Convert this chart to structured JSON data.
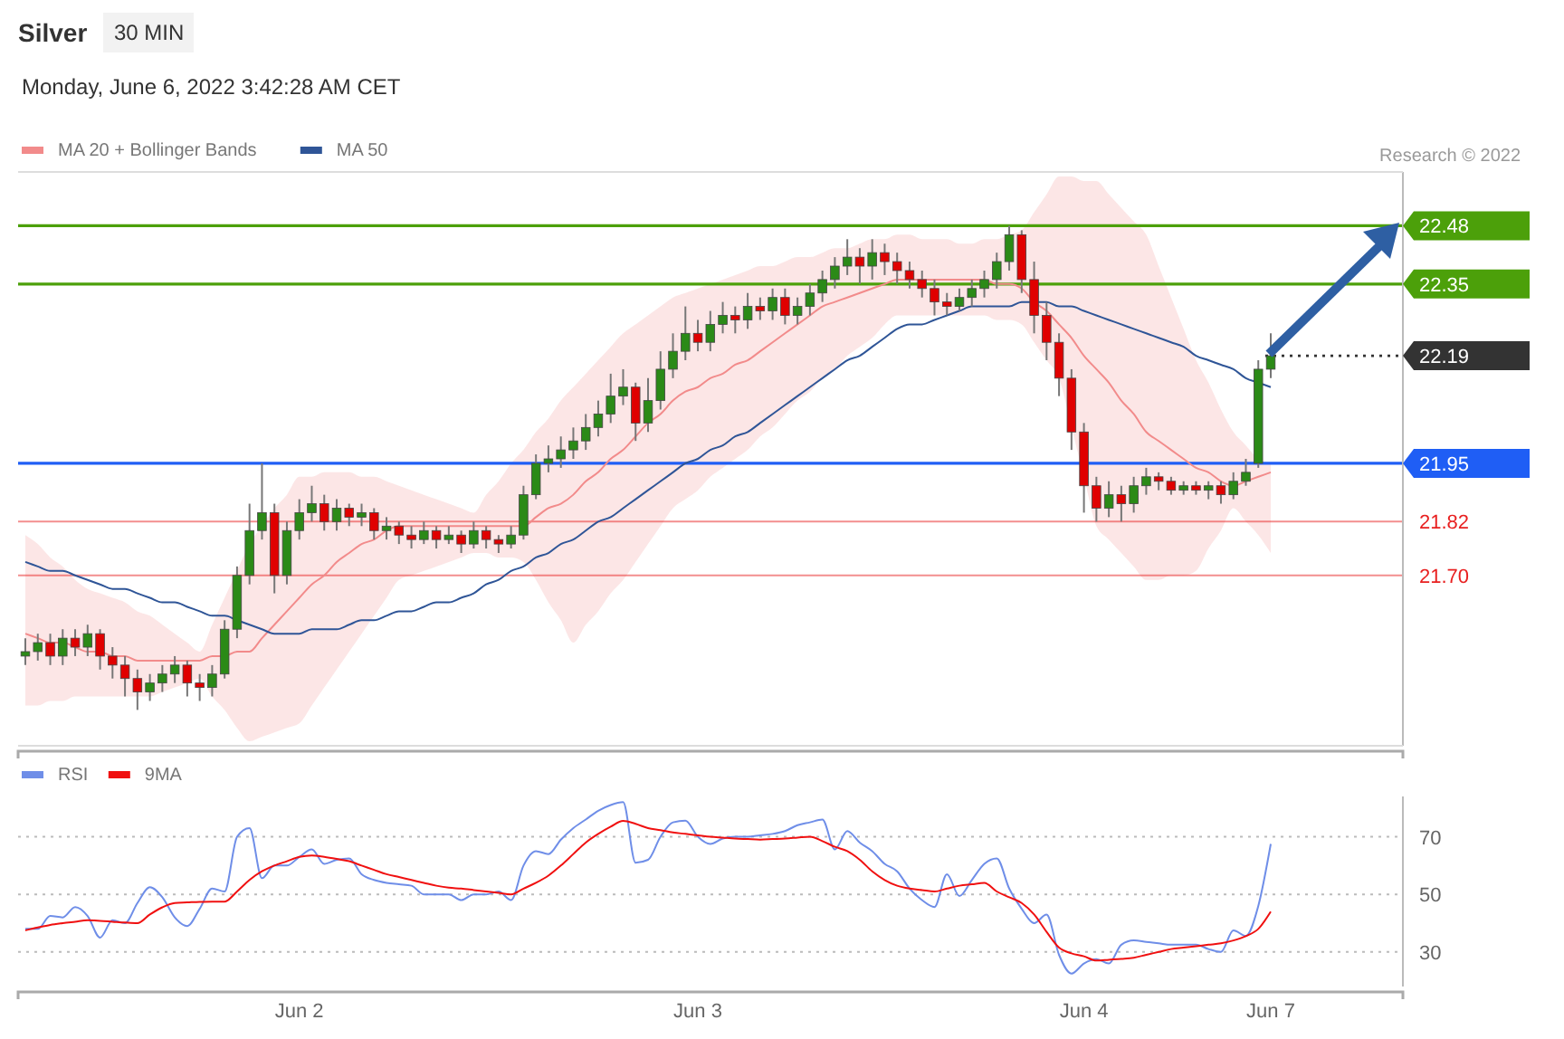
{
  "chart_data": [
    {
      "type": "candlestick",
      "title": "Silver",
      "subtitle": "30 MIN",
      "annotations": [
        "Monday, June 6, 2022 3:42:28 AM CET",
        "Research © 2022"
      ],
      "categories": [
        null,
        null,
        null,
        null,
        null,
        null,
        null,
        null,
        null,
        null,
        null,
        null,
        null,
        null,
        null,
        null,
        null,
        null,
        null,
        null,
        null,
        null,
        null,
        null,
        null,
        null,
        null,
        null,
        null,
        null,
        null,
        null,
        null,
        null,
        null,
        null,
        null,
        null,
        null,
        null,
        null,
        null,
        null,
        null,
        null,
        null,
        null,
        null,
        null,
        null,
        null,
        null,
        null,
        null,
        null,
        null,
        null,
        null,
        null,
        null,
        null,
        null,
        null,
        null,
        null,
        null,
        null,
        null,
        null,
        null,
        null,
        null,
        null,
        null,
        null,
        null,
        null,
        null,
        null,
        null,
        null,
        null,
        null,
        null,
        null,
        null,
        null,
        null,
        null,
        null,
        null,
        null,
        null,
        null,
        null,
        null,
        null,
        null,
        null,
        null,
        null
      ],
      "ohlc": [
        [
          21.52,
          21.56,
          21.5,
          21.53
        ],
        [
          21.53,
          21.57,
          21.51,
          21.55
        ],
        [
          21.55,
          21.57,
          21.5,
          21.52
        ],
        [
          21.52,
          21.58,
          21.5,
          21.56
        ],
        [
          21.56,
          21.58,
          21.52,
          21.54
        ],
        [
          21.54,
          21.59,
          21.52,
          21.57
        ],
        [
          21.57,
          21.58,
          21.49,
          21.52
        ],
        [
          21.52,
          21.54,
          21.47,
          21.5
        ],
        [
          21.5,
          21.52,
          21.43,
          21.47
        ],
        [
          21.47,
          21.49,
          21.4,
          21.44
        ],
        [
          21.44,
          21.48,
          21.42,
          21.46
        ],
        [
          21.46,
          21.5,
          21.44,
          21.48
        ],
        [
          21.48,
          21.52,
          21.46,
          21.5
        ],
        [
          21.5,
          21.51,
          21.43,
          21.46
        ],
        [
          21.46,
          21.48,
          21.42,
          21.45
        ],
        [
          21.45,
          21.5,
          21.43,
          21.48
        ],
        [
          21.48,
          21.6,
          21.47,
          21.58
        ],
        [
          21.58,
          21.72,
          21.56,
          21.7
        ],
        [
          21.7,
          21.86,
          21.68,
          21.8
        ],
        [
          21.8,
          21.95,
          21.78,
          21.84
        ],
        [
          21.84,
          21.86,
          21.66,
          21.7
        ],
        [
          21.7,
          21.82,
          21.68,
          21.8
        ],
        [
          21.8,
          21.87,
          21.78,
          21.84
        ],
        [
          21.84,
          21.9,
          21.82,
          21.86
        ],
        [
          21.86,
          21.88,
          21.8,
          21.82
        ],
        [
          21.82,
          21.87,
          21.8,
          21.85
        ],
        [
          21.85,
          21.86,
          21.81,
          21.83
        ],
        [
          21.83,
          21.86,
          21.81,
          21.84
        ],
        [
          21.84,
          21.85,
          21.78,
          21.8
        ],
        [
          21.8,
          21.83,
          21.78,
          21.81
        ],
        [
          21.81,
          21.82,
          21.77,
          21.79
        ],
        [
          21.79,
          21.81,
          21.76,
          21.78
        ],
        [
          21.78,
          21.82,
          21.77,
          21.8
        ],
        [
          21.8,
          21.81,
          21.76,
          21.78
        ],
        [
          21.78,
          21.81,
          21.77,
          21.79
        ],
        [
          21.79,
          21.8,
          21.75,
          21.77
        ],
        [
          21.77,
          21.82,
          21.76,
          21.8
        ],
        [
          21.8,
          21.81,
          21.76,
          21.78
        ],
        [
          21.78,
          21.79,
          21.75,
          21.77
        ],
        [
          21.77,
          21.81,
          21.76,
          21.79
        ],
        [
          21.79,
          21.9,
          21.78,
          21.88
        ],
        [
          21.88,
          21.97,
          21.87,
          21.95
        ],
        [
          21.95,
          21.99,
          21.93,
          21.96
        ],
        [
          21.96,
          22.01,
          21.94,
          21.98
        ],
        [
          21.98,
          22.03,
          21.96,
          22.0
        ],
        [
          22.0,
          22.06,
          21.98,
          22.03
        ],
        [
          22.03,
          22.09,
          22.01,
          22.06
        ],
        [
          22.06,
          22.15,
          22.04,
          22.1
        ],
        [
          22.1,
          22.16,
          22.08,
          22.12
        ],
        [
          22.12,
          22.13,
          22.0,
          22.04
        ],
        [
          22.04,
          22.14,
          22.02,
          22.09
        ],
        [
          22.09,
          22.2,
          22.07,
          22.16
        ],
        [
          22.16,
          22.24,
          22.14,
          22.2
        ],
        [
          22.2,
          22.3,
          22.18,
          22.24
        ],
        [
          22.24,
          22.27,
          22.2,
          22.22
        ],
        [
          22.22,
          22.29,
          22.2,
          22.26
        ],
        [
          22.26,
          22.31,
          22.24,
          22.28
        ],
        [
          22.28,
          22.3,
          22.24,
          22.27
        ],
        [
          22.27,
          22.33,
          22.25,
          22.3
        ],
        [
          22.3,
          22.32,
          22.27,
          22.29
        ],
        [
          22.29,
          22.34,
          22.27,
          22.32
        ],
        [
          22.32,
          22.34,
          22.26,
          22.28
        ],
        [
          22.28,
          22.32,
          22.26,
          22.3
        ],
        [
          22.3,
          22.35,
          22.28,
          22.33
        ],
        [
          22.33,
          22.38,
          22.31,
          22.36
        ],
        [
          22.36,
          22.41,
          22.34,
          22.39
        ],
        [
          22.39,
          22.45,
          22.37,
          22.41
        ],
        [
          22.41,
          22.43,
          22.35,
          22.39
        ],
        [
          22.39,
          22.45,
          22.36,
          22.42
        ],
        [
          22.42,
          22.44,
          22.37,
          22.4
        ],
        [
          22.4,
          22.42,
          22.35,
          22.38
        ],
        [
          22.38,
          22.4,
          22.34,
          22.36
        ],
        [
          22.36,
          22.38,
          22.32,
          22.34
        ],
        [
          22.34,
          22.36,
          22.28,
          22.31
        ],
        [
          22.31,
          22.33,
          22.28,
          22.3
        ],
        [
          22.3,
          22.34,
          22.29,
          22.32
        ],
        [
          22.32,
          22.36,
          22.3,
          22.34
        ],
        [
          22.34,
          22.38,
          22.32,
          22.36
        ],
        [
          22.36,
          22.42,
          22.34,
          22.4
        ],
        [
          22.4,
          22.48,
          22.38,
          22.46
        ],
        [
          22.46,
          22.47,
          22.33,
          22.36
        ],
        [
          22.36,
          22.4,
          22.24,
          22.28
        ],
        [
          22.28,
          22.31,
          22.18,
          22.22
        ],
        [
          22.22,
          22.24,
          22.1,
          22.14
        ],
        [
          22.14,
          22.16,
          21.98,
          22.02
        ],
        [
          22.02,
          22.04,
          21.84,
          21.9
        ],
        [
          21.9,
          21.92,
          21.82,
          21.85
        ],
        [
          21.85,
          21.91,
          21.83,
          21.88
        ],
        [
          21.88,
          21.9,
          21.82,
          21.86
        ],
        [
          21.86,
          21.92,
          21.84,
          21.9
        ],
        [
          21.9,
          21.94,
          21.88,
          21.92
        ],
        [
          21.92,
          21.93,
          21.89,
          21.91
        ],
        [
          21.91,
          21.92,
          21.88,
          21.89
        ],
        [
          21.89,
          21.91,
          21.88,
          21.9
        ],
        [
          21.9,
          21.91,
          21.88,
          21.89
        ],
        [
          21.89,
          21.91,
          21.87,
          21.9
        ],
        [
          21.9,
          21.91,
          21.86,
          21.88
        ],
        [
          21.88,
          21.93,
          21.87,
          21.91
        ],
        [
          21.91,
          21.96,
          21.9,
          21.93
        ],
        [
          21.95,
          22.18,
          21.94,
          22.16
        ],
        [
          22.16,
          22.24,
          22.14,
          22.19
        ]
      ],
      "series": [
        {
          "type": "line",
          "name": "MA 20 + Bollinger Bands",
          "color": "#f28b8b",
          "values": [
            21.57,
            21.56,
            21.55,
            21.55,
            21.54,
            21.53,
            21.53,
            21.52,
            21.52,
            21.51,
            21.51,
            21.51,
            21.51,
            21.51,
            21.51,
            21.52,
            21.52,
            21.53,
            21.53,
            21.56,
            21.59,
            21.62,
            21.65,
            21.68,
            21.7,
            21.73,
            21.75,
            21.77,
            21.78,
            21.8,
            21.81,
            21.81,
            21.81,
            21.81,
            21.81,
            21.81,
            21.81,
            21.81,
            21.81,
            21.81,
            21.81,
            21.83,
            21.85,
            21.86,
            21.88,
            21.91,
            21.93,
            21.96,
            21.98,
            22.01,
            22.04,
            22.06,
            22.09,
            22.11,
            22.12,
            22.14,
            22.15,
            22.17,
            22.18,
            22.2,
            22.22,
            22.24,
            22.26,
            22.28,
            22.3,
            22.31,
            22.32,
            22.33,
            22.34,
            22.35,
            22.36,
            22.36,
            22.36,
            22.36,
            22.36,
            22.36,
            22.36,
            22.36,
            22.35,
            22.35,
            22.34,
            22.31,
            22.29,
            22.26,
            22.23,
            22.19,
            22.16,
            22.13,
            22.09,
            22.06,
            22.02,
            22.0,
            21.98,
            21.96,
            21.94,
            21.93,
            21.91,
            21.9,
            21.91,
            21.92,
            21.93
          ],
          "upper": [
            21.79,
            21.77,
            21.74,
            21.72,
            21.69,
            21.67,
            21.66,
            21.65,
            21.64,
            21.62,
            21.61,
            21.59,
            21.57,
            21.55,
            21.53,
            21.59,
            21.65,
            21.71,
            21.77,
            21.81,
            21.85,
            21.88,
            21.92,
            21.92,
            21.93,
            21.93,
            21.93,
            21.92,
            21.92,
            21.91,
            21.9,
            21.89,
            21.88,
            21.87,
            21.86,
            21.85,
            21.84,
            21.88,
            21.91,
            21.95,
            21.98,
            22.02,
            22.05,
            22.09,
            22.12,
            22.15,
            22.18,
            22.21,
            22.24,
            22.26,
            22.28,
            22.3,
            22.32,
            22.33,
            22.34,
            22.35,
            22.36,
            22.37,
            22.38,
            22.39,
            22.39,
            22.4,
            22.41,
            22.41,
            22.42,
            22.43,
            22.43,
            22.44,
            22.45,
            22.45,
            22.46,
            22.46,
            22.45,
            22.45,
            22.45,
            22.44,
            22.44,
            22.45,
            22.45,
            22.46,
            22.47,
            22.51,
            22.55,
            22.59,
            22.59,
            22.58,
            22.58,
            22.55,
            22.52,
            22.49,
            22.46,
            22.39,
            22.32,
            22.25,
            22.18,
            22.13,
            22.07,
            22.02,
            21.99,
            21.96,
            21.95
          ],
          "lower": [
            21.41,
            21.41,
            21.42,
            21.42,
            21.43,
            21.43,
            21.43,
            21.43,
            21.43,
            21.43,
            21.43,
            21.44,
            21.45,
            21.46,
            21.47,
            21.43,
            21.4,
            21.36,
            21.33,
            21.34,
            21.35,
            21.36,
            21.37,
            21.41,
            21.45,
            21.49,
            21.53,
            21.57,
            21.61,
            21.65,
            21.69,
            21.7,
            21.71,
            21.72,
            21.73,
            21.74,
            21.75,
            21.75,
            21.74,
            21.74,
            21.73,
            21.69,
            21.64,
            21.6,
            21.55,
            21.59,
            21.62,
            21.66,
            21.69,
            21.73,
            21.77,
            21.81,
            21.85,
            21.87,
            21.89,
            21.92,
            21.94,
            21.96,
            21.98,
            22.01,
            22.03,
            22.06,
            22.09,
            22.11,
            22.14,
            22.16,
            22.19,
            22.21,
            22.23,
            22.26,
            22.28,
            22.28,
            22.28,
            22.28,
            22.28,
            22.28,
            22.28,
            22.28,
            22.27,
            22.27,
            22.26,
            22.22,
            22.18,
            22.14,
            22.03,
            21.92,
            21.81,
            21.78,
            21.75,
            21.72,
            21.69,
            21.69,
            21.7,
            21.7,
            21.71,
            21.76,
            21.8,
            21.85,
            21.82,
            21.79,
            21.75
          ]
        },
        {
          "type": "line",
          "name": "MA 50",
          "color": "#2f5597",
          "values": [
            21.73,
            21.72,
            21.71,
            21.71,
            21.7,
            21.69,
            21.68,
            21.67,
            21.67,
            21.66,
            21.65,
            21.64,
            21.64,
            21.63,
            21.62,
            21.61,
            21.61,
            21.6,
            21.59,
            21.58,
            21.57,
            21.57,
            21.57,
            21.58,
            21.58,
            21.58,
            21.59,
            21.6,
            21.6,
            21.61,
            21.62,
            21.62,
            21.63,
            21.64,
            21.64,
            21.65,
            21.66,
            21.68,
            21.69,
            21.71,
            21.72,
            21.74,
            21.75,
            21.77,
            21.78,
            21.8,
            21.82,
            21.83,
            21.85,
            21.87,
            21.89,
            21.91,
            21.93,
            21.95,
            21.96,
            21.98,
            21.99,
            22.01,
            22.02,
            22.04,
            22.06,
            22.08,
            22.1,
            22.12,
            22.14,
            22.16,
            22.18,
            22.19,
            22.21,
            22.23,
            22.25,
            22.26,
            22.26,
            22.27,
            22.28,
            22.29,
            22.3,
            22.3,
            22.3,
            22.3,
            22.31,
            22.31,
            22.31,
            22.3,
            22.3,
            22.29,
            22.28,
            22.27,
            22.26,
            22.25,
            22.24,
            22.23,
            22.22,
            22.21,
            22.19,
            22.18,
            22.17,
            22.16,
            22.14,
            22.13,
            22.12
          ]
        }
      ],
      "ref_lines": [
        {
          "axis": "y",
          "value": 22.48,
          "label": "22.48",
          "color": "#4ca00a",
          "line_style": "solid"
        },
        {
          "axis": "y",
          "value": 22.35,
          "label": "22.35",
          "color": "#4ca00a",
          "line_style": "solid"
        },
        {
          "axis": "y",
          "value": 22.19,
          "label": "22.19",
          "color": "#333333",
          "line_style": "dotted"
        },
        {
          "axis": "y",
          "value": 21.95,
          "label": "21.95",
          "color": "#1f5ef5",
          "line_style": "solid"
        },
        {
          "axis": "y",
          "value": 21.82,
          "label": "21.82",
          "color": "#e82020",
          "line_style": "solid"
        },
        {
          "axis": "y",
          "value": 21.7,
          "label": "21.70",
          "color": "#e82020",
          "line_style": "solid"
        }
      ],
      "ylim": [
        21.32,
        22.6
      ],
      "legend": "top left",
      "grid": false
    },
    {
      "type": "line",
      "ylim": [
        18,
        84
      ],
      "categories": [
        null,
        null,
        null,
        null,
        null,
        null,
        null,
        null,
        null,
        null,
        null,
        null,
        null,
        null,
        null,
        null,
        null,
        null,
        null,
        null,
        null,
        null,
        "Jun 2",
        null,
        null,
        null,
        null,
        null,
        null,
        null,
        null,
        null,
        null,
        null,
        null,
        null,
        null,
        null,
        null,
        null,
        null,
        null,
        null,
        null,
        null,
        null,
        null,
        null,
        null,
        null,
        null,
        null,
        null,
        null,
        "Jun 3",
        null,
        null,
        null,
        null,
        null,
        null,
        null,
        null,
        null,
        null,
        null,
        null,
        null,
        null,
        null,
        null,
        null,
        null,
        null,
        null,
        null,
        null,
        null,
        null,
        null,
        null,
        null,
        null,
        null,
        null,
        "Jun 4",
        null,
        null,
        null,
        null,
        null,
        null,
        null,
        null,
        null,
        null,
        null,
        null,
        null,
        null,
        "Jun 7"
      ],
      "yticks": [
        30,
        50,
        70
      ],
      "grid": "y",
      "legend": "top left",
      "series": [
        {
          "name": "RSI",
          "color": "#6f8ee8",
          "values": [
            38,
            38,
            42.5,
            42,
            45.6,
            42.5,
            35,
            41,
            40,
            47,
            52.5,
            49,
            42,
            39,
            45,
            52,
            51,
            70,
            73,
            55.6,
            60,
            60,
            63,
            65.6,
            60.6,
            62,
            62.5,
            57,
            55,
            54,
            53.5,
            53,
            50,
            50,
            50,
            48,
            50,
            50,
            51,
            48,
            60,
            65,
            64,
            69,
            73,
            76,
            79,
            81,
            82,
            61,
            62,
            70,
            75,
            75.6,
            70,
            67.5,
            69.4,
            70,
            70,
            70.5,
            71,
            72,
            74,
            75,
            76,
            65.6,
            72,
            68,
            65,
            60.6,
            58,
            52,
            48,
            45.6,
            57,
            49.4,
            55,
            60.6,
            62.5,
            52,
            45,
            40,
            43,
            29,
            22.5,
            26,
            27.5,
            26,
            32.5,
            34,
            33.5,
            33,
            32.5,
            32.5,
            32.5,
            31,
            30,
            37.5,
            35.6,
            46,
            67.5
          ]
        },
        {
          "name": "9MA",
          "color": "#f01010",
          "values": [
            37.5,
            38.5,
            39.4,
            40,
            40.5,
            41,
            40.8,
            40.5,
            40.2,
            40,
            43,
            45.5,
            47,
            47.2,
            47.4,
            47.5,
            47.5,
            51,
            55,
            58,
            60,
            61.5,
            63,
            63.5,
            63,
            62.3,
            61.5,
            60,
            58.5,
            57,
            56,
            55,
            54,
            53,
            52.3,
            52,
            51.5,
            51,
            50.5,
            50,
            52,
            54,
            56.5,
            60,
            64,
            68,
            71,
            73.5,
            75.5,
            74.5,
            73,
            72.3,
            71.5,
            71,
            70.5,
            70,
            69.7,
            69.4,
            69.2,
            69,
            69.2,
            69.4,
            69.7,
            70,
            68.5,
            66.5,
            65,
            62,
            58,
            55,
            53,
            52,
            51.5,
            51,
            52,
            53,
            53.5,
            54,
            51,
            49,
            47,
            43,
            37,
            31.5,
            29.5,
            28.5,
            27,
            27.3,
            27.6,
            28,
            29,
            30,
            31,
            31.5,
            32,
            32.5,
            33,
            34,
            35.5,
            38,
            44
          ]
        }
      ]
    }
  ]
}
